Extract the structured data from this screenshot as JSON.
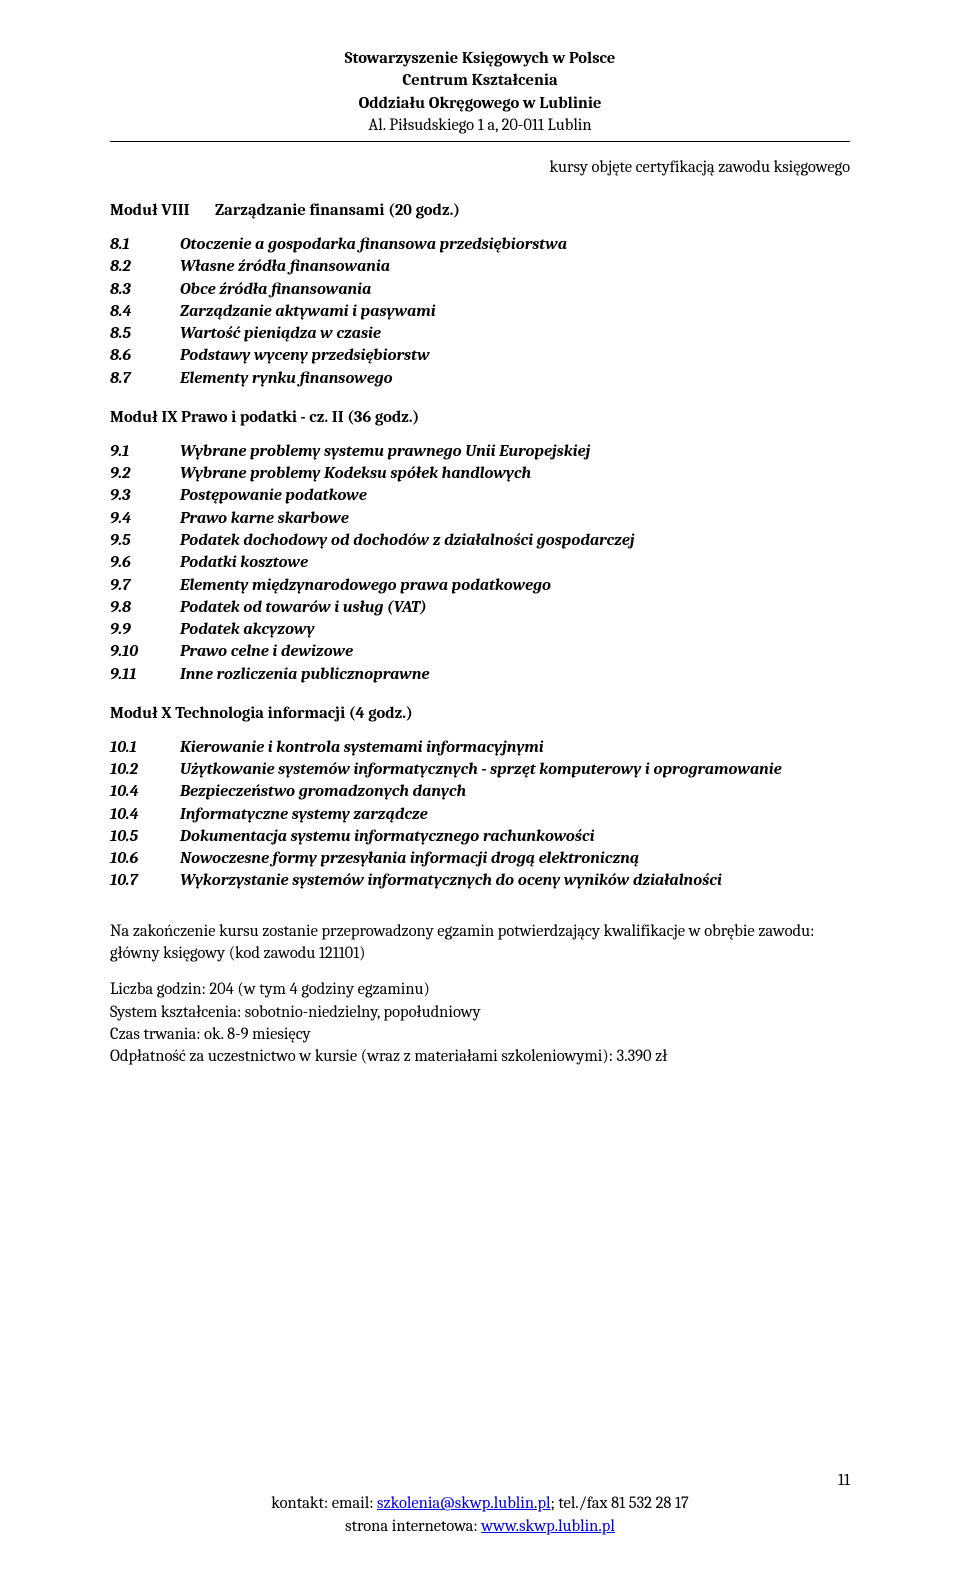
{
  "colors": {
    "text": "#000000",
    "background": "#ffffff",
    "link": "#0000ee",
    "rule": "#000000"
  },
  "typography": {
    "base_font_family": "Cambria, Georgia, serif",
    "base_fontsize_pt": 12,
    "header_bold": true,
    "items_italic_bold": true
  },
  "header": {
    "line1": "Stowarzyszenie Księgowych w Polsce",
    "line2": "Centrum Kształcenia",
    "line3": "Oddziału Okręgowego w Lublinie",
    "line4": "Al. Piłsudskiego 1 a, 20-011 Lublin"
  },
  "sub_right": "kursy objęte certyfikacją zawodu księgowego",
  "modules": [
    {
      "num": "Moduł VIII",
      "title": "Zarządzanie finansami (20 godz.)",
      "items": [
        {
          "n": "8.1",
          "t": "Otoczenie a gospodarka finansowa przedsiębiorstwa"
        },
        {
          "n": "8.2",
          "t": "Własne źródła  finansowania"
        },
        {
          "n": "8.3",
          "t": "Obce źródła  finansowania"
        },
        {
          "n": "8.4",
          "t": "Zarządzanie aktywami i pasywami"
        },
        {
          "n": "8.5",
          "t": "Wartość pieniądza w czasie"
        },
        {
          "n": "8.6",
          "t": "Podstawy wyceny przedsiębiorstw"
        },
        {
          "n": "8.7",
          "t": "Elementy rynku finansowego"
        }
      ]
    },
    {
      "num": "Moduł IX",
      "title": "Prawo i podatki  - cz. II (36 godz.)",
      "num_inline": true,
      "items": [
        {
          "n": "9.1",
          "t": "Wybrane problemy systemu prawnego Unii Europejskiej"
        },
        {
          "n": "9.2",
          "t": "Wybrane problemy Kodeksu spółek handlowych"
        },
        {
          "n": "9.3",
          "t": "Postępowanie podatkowe"
        },
        {
          "n": "9.4",
          "t": "Prawo karne skarbowe"
        },
        {
          "n": "9.5",
          "t": "Podatek dochodowy od dochodów z działalności gospodarczej"
        },
        {
          "n": "9.6",
          "t": "Podatki kosztowe"
        },
        {
          "n": "9.7",
          "t": "Elementy międzynarodowego prawa podatkowego"
        },
        {
          "n": "9.8",
          "t": "Podatek od towarów i usług (VAT)"
        },
        {
          "n": "9.9",
          "t": "Podatek akcyzowy"
        },
        {
          "n": "9.10",
          "t": "Prawo celne i dewizowe"
        },
        {
          "n": "9.11",
          "t": "Inne rozliczenia publicznoprawne"
        }
      ]
    },
    {
      "num": "Moduł X",
      "title": "Technologia informacji (4 godz.)",
      "num_inline": true,
      "items": [
        {
          "n": "10.1",
          "t": "Kierowanie i kontrola systemami informacyjnymi"
        },
        {
          "n": "10.2",
          "t": "Użytkowanie systemów informatycznych - sprzęt komputerowy i oprogramowanie"
        },
        {
          "n": "10.4",
          "t": "Bezpieczeństwo gromadzonych danych"
        },
        {
          "n": "10.4",
          "t": "Informatyczne systemy zarządcze"
        },
        {
          "n": "10.5",
          "t": "Dokumentacja systemu informatycznego rachunkowości"
        },
        {
          "n": "10.6",
          "t": "Nowoczesne formy przesyłania informacji drogą elektroniczną"
        },
        {
          "n": "10.7",
          "t": "Wykorzystanie systemów informatycznych do oceny wyników działalności"
        }
      ]
    }
  ],
  "footer_paragraphs": [
    "Na zakończenie kursu zostanie przeprowadzony egzamin potwierdzający kwalifikacje w obrębie zawodu: główny księgowy (kod zawodu 121101)",
    "Liczba godzin: 204 (w tym 4 godziny egzaminu)\nSystem kształcenia: sobotnio-niedzielny, popołudniowy\nCzas trwania: ok. 8-9 miesięcy\nOdpłatność za uczestnictwo w kursie (wraz z materiałami szkoleniowymi): 3.390 zł"
  ],
  "contact": {
    "line1_prefix": "kontakt: email: ",
    "email": "szkolenia@skwp.lublin.pl",
    "line1_suffix": "; tel./fax 81 532 28 17",
    "line2_prefix": "strona internetowa: ",
    "url": "www.skwp.lublin.pl"
  },
  "page_number": "11"
}
